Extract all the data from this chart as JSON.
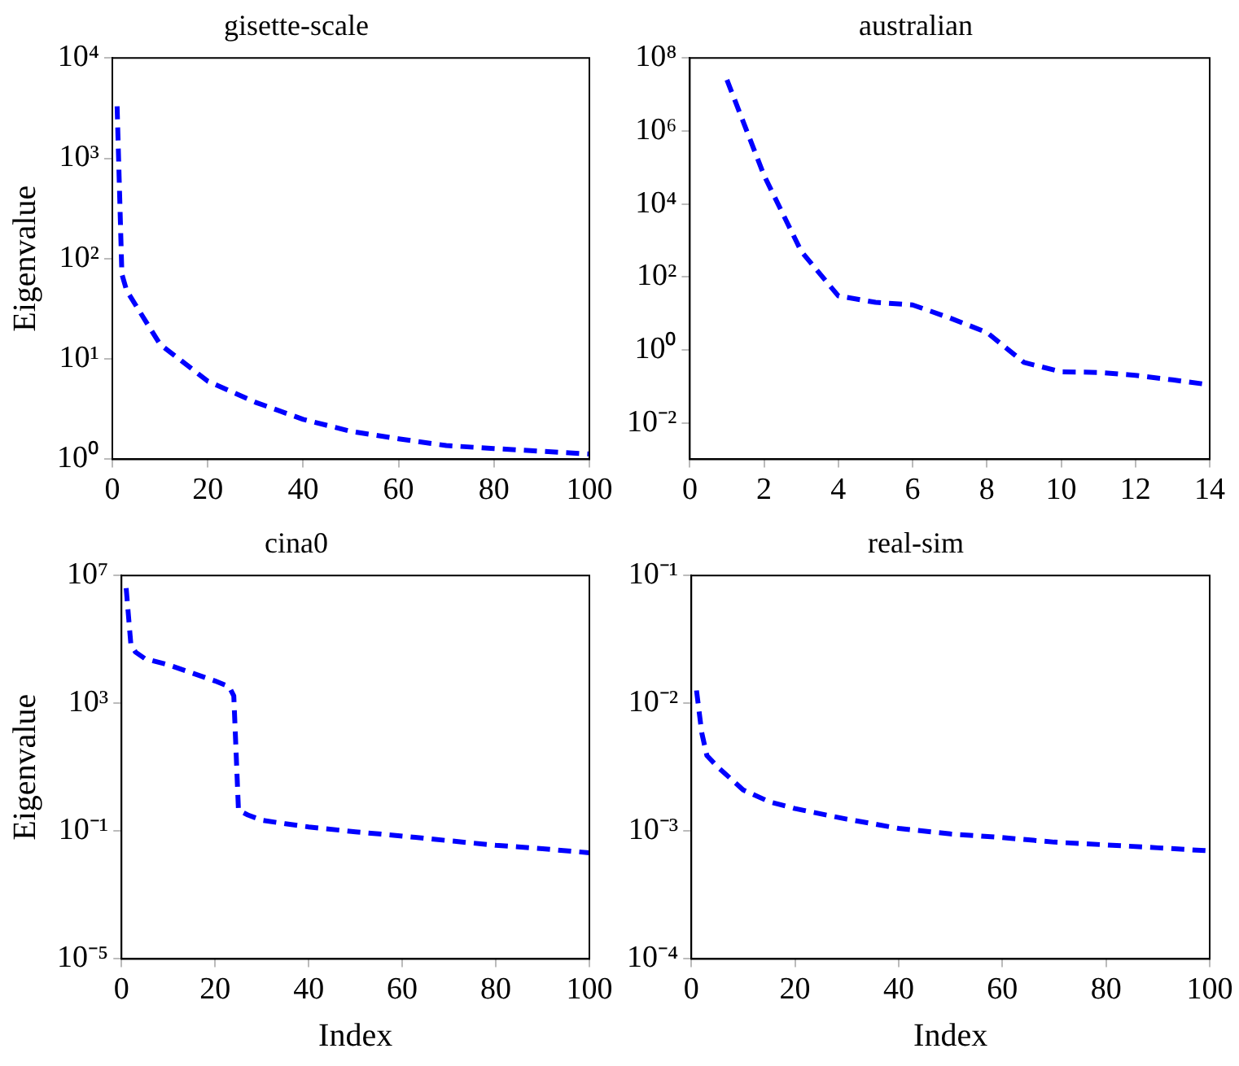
{
  "chart_data": [
    {
      "type": "line",
      "title": "gisette-scale",
      "ylabel": "Eigenvalue",
      "log": true,
      "line_style": "dashed",
      "color": "#0000ff",
      "x": [
        1,
        2,
        3,
        10,
        20,
        30,
        40,
        50,
        60,
        70,
        80,
        100
      ],
      "values": [
        3300,
        70,
        48,
        14,
        6,
        3.7,
        2.5,
        1.9,
        1.6,
        1.37,
        1.28,
        1.13
      ],
      "xlim": [
        0,
        100
      ],
      "xticks": [
        0,
        20,
        40,
        60,
        80,
        100
      ],
      "ylim": [
        1,
        10000
      ],
      "yticks": [
        {
          "value": 1,
          "label": "10⁰"
        },
        {
          "value": 10,
          "label": "10¹"
        },
        {
          "value": 100,
          "label": "10²"
        },
        {
          "value": 1000,
          "label": "10³"
        },
        {
          "value": 10000,
          "label": "10⁴"
        }
      ]
    },
    {
      "type": "line",
      "title": "australian",
      "log": true,
      "line_style": "dashed",
      "color": "#0000ff",
      "x": [
        1,
        2,
        3,
        4,
        5,
        6,
        7,
        8,
        9,
        10,
        11,
        12,
        13,
        14
      ],
      "values": [
        25000000,
        60000,
        500,
        30,
        20,
        17,
        7.5,
        3,
        0.45,
        0.25,
        0.24,
        0.2,
        0.15,
        0.11
      ],
      "xlim": [
        0,
        14
      ],
      "xticks": [
        0,
        2,
        4,
        6,
        8,
        10,
        12,
        14
      ],
      "ylim": [
        0.001,
        100000000
      ],
      "yticks": [
        {
          "value": 0.01,
          "label": "10⁻²"
        },
        {
          "value": 1,
          "label": "10⁰"
        },
        {
          "value": 100,
          "label": "10²"
        },
        {
          "value": 10000,
          "label": "10⁴"
        },
        {
          "value": 1000000,
          "label": "10⁶"
        },
        {
          "value": 100000000,
          "label": "10⁸"
        }
      ]
    },
    {
      "type": "line",
      "title": "cina0",
      "xlabel": "Index",
      "ylabel": "Eigenvalue",
      "log": true,
      "line_style": "dashed",
      "color": "#0000ff",
      "x": [
        1,
        2,
        3,
        5,
        10,
        15,
        20,
        23,
        24,
        25,
        27,
        30,
        35,
        40,
        50,
        60,
        70,
        80,
        90,
        100
      ],
      "values": [
        4000000,
        70000,
        40000,
        25000,
        16000,
        9000,
        5000,
        3300,
        1700,
        0.45,
        0.32,
        0.22,
        0.17,
        0.135,
        0.095,
        0.07,
        0.05,
        0.036,
        0.028,
        0.021
      ],
      "xlim": [
        0,
        100
      ],
      "xticks": [
        0,
        20,
        40,
        60,
        80,
        100
      ],
      "ylim": [
        1e-05,
        10000000
      ],
      "yticks": [
        {
          "value": 1e-05,
          "label": "10⁻⁵"
        },
        {
          "value": 0.1,
          "label": "10⁻¹"
        },
        {
          "value": 1000,
          "label": "10³"
        },
        {
          "value": 10000000,
          "label": "10⁷"
        }
      ]
    },
    {
      "type": "line",
      "title": "real-sim",
      "xlabel": "Index",
      "log": true,
      "line_style": "dashed",
      "color": "#0000ff",
      "x": [
        1,
        2,
        3,
        5,
        10,
        15,
        20,
        30,
        40,
        50,
        60,
        70,
        80,
        90,
        100
      ],
      "values": [
        0.0126,
        0.0059,
        0.0039,
        0.0032,
        0.0021,
        0.0017,
        0.0015,
        0.00124,
        0.00105,
        0.00095,
        0.00089,
        0.00082,
        0.00078,
        0.00074,
        0.0007
      ],
      "xlim": [
        0,
        100
      ],
      "xticks": [
        0,
        20,
        40,
        60,
        80,
        100
      ],
      "ylim": [
        0.0001,
        0.1
      ],
      "yticks": [
        {
          "value": 0.0001,
          "label": "10⁻⁴"
        },
        {
          "value": 0.001,
          "label": "10⁻³"
        },
        {
          "value": 0.01,
          "label": "10⁻²"
        },
        {
          "value": 0.1,
          "label": "10⁻¹"
        }
      ]
    }
  ]
}
